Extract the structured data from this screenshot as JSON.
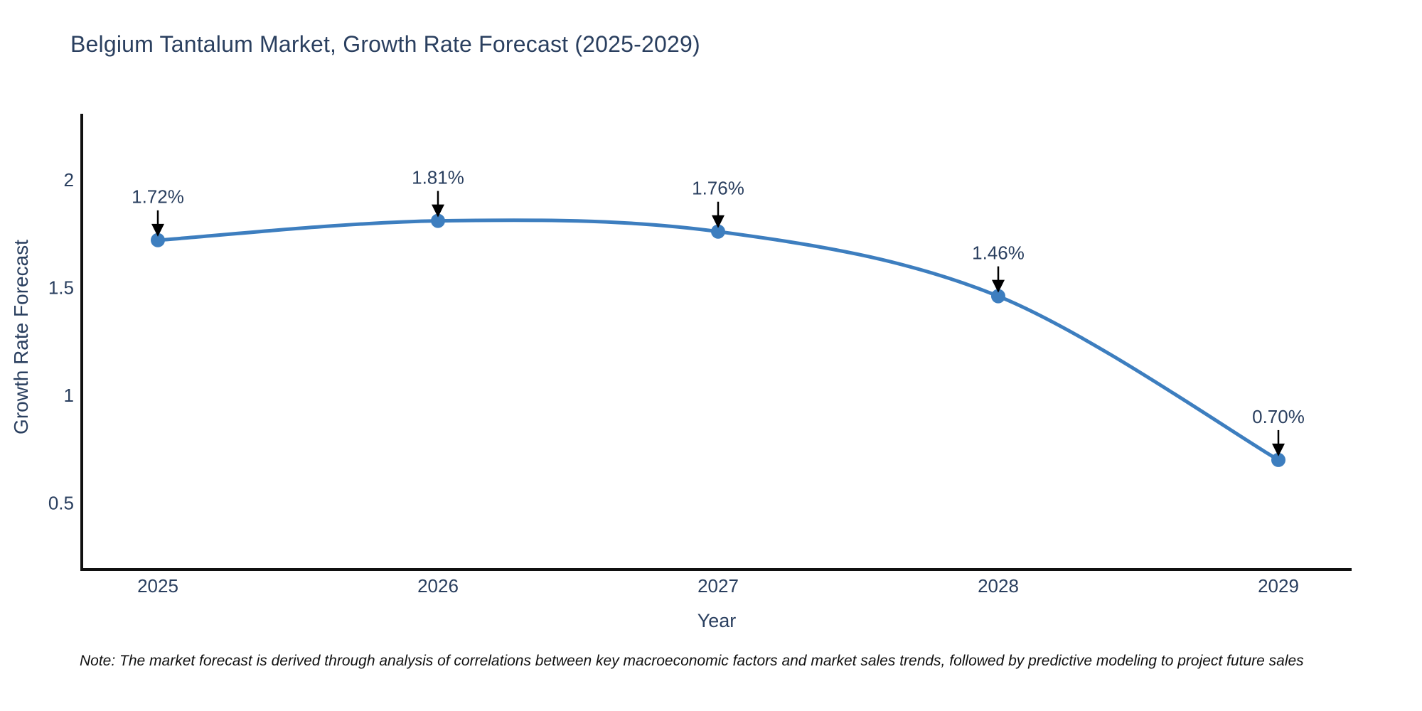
{
  "note": "Note: The market forecast is derived through analysis of correlations between key macroeconomic factors and market sales trends, followed by predictive modeling to project future sales",
  "chart_data": {
    "type": "line",
    "title": "Belgium Tantalum Market, Growth Rate Forecast (2025-2029)",
    "xlabel": "Year",
    "ylabel": "Growth Rate Forecast",
    "x": [
      2025,
      2026,
      2027,
      2028,
      2029
    ],
    "series": [
      {
        "name": "Growth Rate Forecast",
        "values": [
          1.72,
          1.81,
          1.76,
          1.46,
          0.7
        ]
      }
    ],
    "point_labels": [
      "1.72%",
      "1.81%",
      "1.76%",
      "1.46%",
      "0.70%"
    ],
    "yticks": [
      0.5,
      1,
      1.5,
      2
    ],
    "ylim": [
      0.2,
      2.31
    ],
    "line_shape": "spline",
    "grid": false,
    "legend_position": "none",
    "colors": {
      "line": "#3d7ebf",
      "marker": "#3d7ebf",
      "text": "#2a3f5f",
      "axis": "#101010",
      "annotation_arrow": "#000000"
    }
  }
}
